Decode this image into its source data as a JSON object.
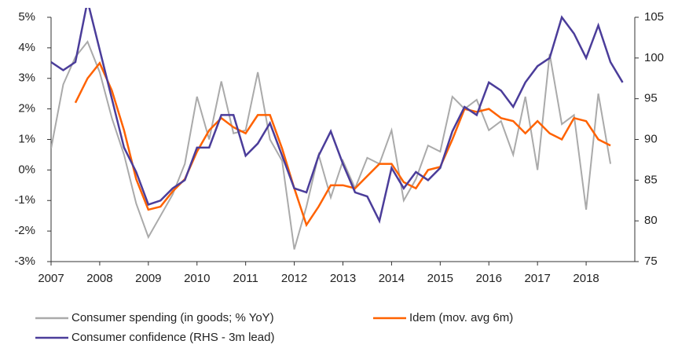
{
  "chart_data": {
    "type": "line",
    "x": [
      2007,
      2007.25,
      2007.5,
      2007.75,
      2008,
      2008.25,
      2008.5,
      2008.75,
      2009,
      2009.25,
      2009.5,
      2009.75,
      2010,
      2010.25,
      2010.5,
      2010.75,
      2011,
      2011.25,
      2011.5,
      2011.75,
      2012,
      2012.25,
      2012.5,
      2012.75,
      2013,
      2013.25,
      2013.5,
      2013.75,
      2014,
      2014.25,
      2014.5,
      2014.75,
      2015,
      2015.25,
      2015.5,
      2015.75,
      2016,
      2016.25,
      2016.5,
      2016.75,
      2017,
      2017.25,
      2017.5,
      2017.75,
      2018,
      2018.25,
      2018.5,
      2018.75
    ],
    "xlim": [
      2007,
      2019
    ],
    "xticks": [
      2007,
      2008,
      2009,
      2010,
      2011,
      2012,
      2013,
      2014,
      2015,
      2016,
      2017,
      2018
    ],
    "ylim": [
      -3,
      5
    ],
    "yticks": [
      {
        "value": -3,
        "label": "-3%"
      },
      {
        "value": -2,
        "label": "-2%"
      },
      {
        "value": -1,
        "label": "-1%"
      },
      {
        "value": 0,
        "label": "0%"
      },
      {
        "value": 1,
        "label": "1%"
      },
      {
        "value": 2,
        "label": "2%"
      },
      {
        "value": 3,
        "label": "3%"
      },
      {
        "value": 4,
        "label": "4%"
      },
      {
        "value": 5,
        "label": "5%"
      }
    ],
    "y2lim": [
      75,
      105
    ],
    "y2ticks": [
      75,
      80,
      85,
      90,
      95,
      100,
      105
    ],
    "series": [
      {
        "name": "Consumer spending (in goods; % YoY)",
        "color": "#aaaaaa",
        "values": [
          0.7,
          2.8,
          3.7,
          4.2,
          3.2,
          1.7,
          0.5,
          -1.1,
          -2.2,
          -1.5,
          -0.8,
          0.2,
          2.4,
          1.0,
          2.9,
          1.2,
          1.3,
          3.2,
          1.0,
          0.3,
          -2.6,
          -1.2,
          0.5,
          -0.9,
          0.3,
          -0.6,
          0.4,
          0.2,
          1.3,
          -1.0,
          -0.3,
          0.8,
          0.6,
          2.4,
          2.0,
          2.3,
          1.3,
          1.6,
          0.5,
          2.4,
          0.0,
          3.8,
          1.5,
          1.8,
          -1.3,
          2.5,
          0.2,
          null
        ]
      },
      {
        "name": "Idem (mov. avg 6m)",
        "color": "#ff6200",
        "values": [
          null,
          null,
          2.2,
          3.0,
          3.5,
          2.6,
          1.3,
          -0.3,
          -1.3,
          -1.2,
          -0.7,
          -0.3,
          0.6,
          1.3,
          1.7,
          1.4,
          1.2,
          1.8,
          1.8,
          0.7,
          -0.6,
          -1.8,
          -1.2,
          -0.5,
          -0.5,
          -0.6,
          -0.2,
          0.2,
          0.2,
          -0.4,
          -0.6,
          0.0,
          0.1,
          1.0,
          2.0,
          1.9,
          2.0,
          1.7,
          1.6,
          1.2,
          1.6,
          1.2,
          1.0,
          1.7,
          1.6,
          1.0,
          0.8,
          null
        ]
      },
      {
        "name": "Consumer confidence (RHS - 3m lead)",
        "color": "#4b3d9a",
        "axis": "y2",
        "values": [
          99.5,
          98.5,
          99.5,
          107,
          101,
          95,
          89,
          86,
          82,
          82.5,
          84,
          85,
          89,
          89,
          93,
          93,
          88,
          89.5,
          92,
          88,
          84,
          83.5,
          88,
          91,
          87,
          83.5,
          83,
          80,
          86.5,
          84,
          86,
          85,
          86.5,
          91,
          94,
          93,
          97,
          96,
          94,
          97,
          99,
          100,
          105,
          103,
          100,
          104,
          99.5,
          97
        ]
      }
    ]
  }
}
